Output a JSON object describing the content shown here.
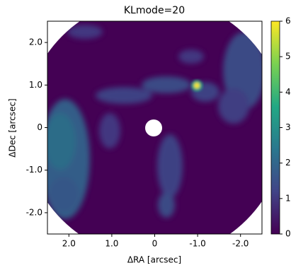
{
  "chart_data": {
    "type": "image",
    "title": "KLmode=20",
    "x_label": "ΔRA [arcsec]",
    "y_label": "ΔDec [arcsec]",
    "xlim": [
      2.5,
      -2.5
    ],
    "ylim": [
      -2.5,
      2.5
    ],
    "xticks": [
      {
        "value": 2,
        "label": "2.0"
      },
      {
        "value": 1,
        "label": "1.0"
      },
      0,
      {
        "value": -1,
        "label": "-1.0"
      },
      {
        "value": -2,
        "label": "-2.0"
      }
    ],
    "yticks": [
      {
        "value": 2,
        "label": "2.0"
      },
      {
        "value": 1,
        "label": "1.0"
      },
      0,
      {
        "value": -1,
        "label": "-1.0"
      },
      {
        "value": -2,
        "label": "-2.0"
      }
    ],
    "colormap": "viridis",
    "colormap_colors": [
      "#440154",
      "#414487",
      "#2a788e",
      "#22a884",
      "#7ad151",
      "#fde725"
    ],
    "clim": [
      0,
      6
    ],
    "cticks": [
      0,
      1,
      2,
      3,
      4,
      5,
      6
    ]
  }
}
